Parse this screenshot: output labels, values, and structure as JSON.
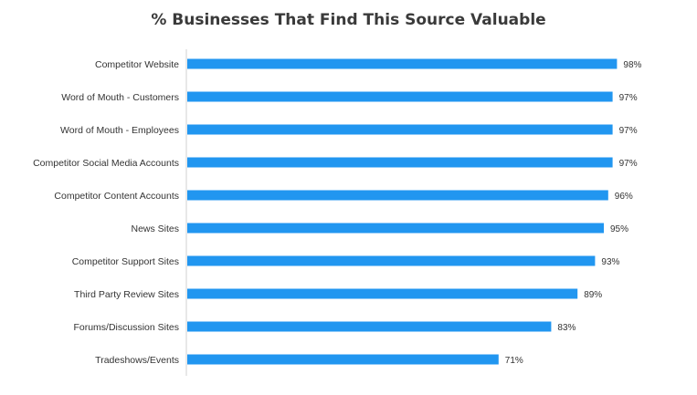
{
  "chart_data": {
    "type": "bar",
    "orientation": "horizontal",
    "title": "% Businesses That Find This Source Valuable",
    "categories": [
      "Competitor Website",
      "Word of Mouth - Customers",
      "Word of Mouth - Employees",
      "Competitor Social Media Accounts",
      "Competitor Content Accounts",
      "News Sites",
      "Competitor Support Sites",
      "Third Party Review Sites",
      "Forums/Discussion Sites",
      "Tradeshows/Events"
    ],
    "values": [
      98,
      97,
      97,
      97,
      96,
      95,
      93,
      89,
      83,
      71
    ],
    "value_labels": [
      "98%",
      "97%",
      "97%",
      "97%",
      "96%",
      "95%",
      "93%",
      "89%",
      "83%",
      "71%"
    ],
    "xlim": [
      0,
      100
    ],
    "xlabel": "",
    "ylabel": "",
    "grid": false,
    "bar_color": "#2196f0",
    "axis_color": "#d0d0d0"
  }
}
